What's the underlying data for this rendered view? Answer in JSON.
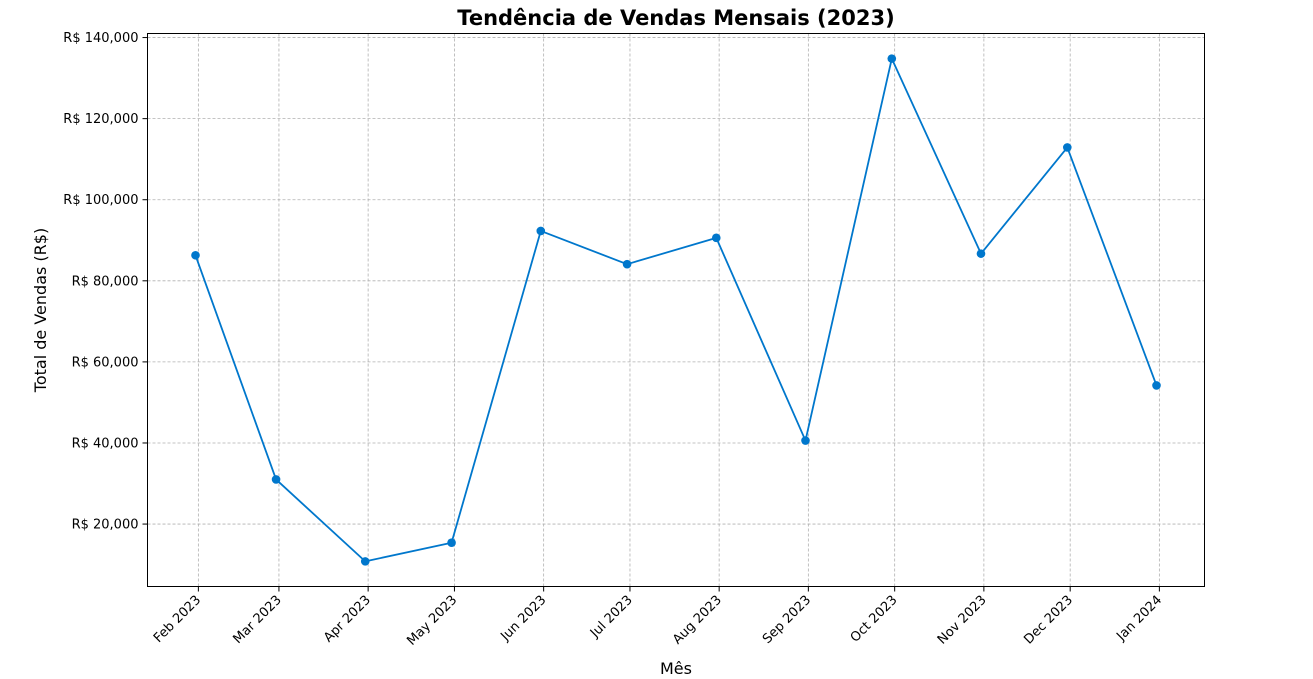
{
  "chart_data": {
    "type": "line",
    "title": "Tendência de Vendas Mensais (2023)",
    "xlabel": "Mês",
    "ylabel": "Total de Vendas (R$)",
    "categories": [
      "Feb 2023",
      "Mar 2023",
      "Apr 2023",
      "May 2023",
      "Jun 2023",
      "Jul 2023",
      "Aug 2023",
      "Sep 2023",
      "Oct 2023",
      "Nov 2023",
      "Dec 2023",
      "Jan 2024"
    ],
    "x_dates": [
      "2023-01-31",
      "2023-02-28",
      "2023-03-31",
      "2023-04-30",
      "2023-05-31",
      "2023-06-30",
      "2023-07-31",
      "2023-08-31",
      "2023-09-30",
      "2023-10-31",
      "2023-11-30",
      "2023-12-31"
    ],
    "series": [
      {
        "values": [
          86300,
          31000,
          10800,
          15400,
          92300,
          84100,
          90600,
          40600,
          134800,
          86700,
          112900,
          54200
        ]
      }
    ],
    "y_ticks": [
      20000,
      40000,
      60000,
      80000,
      100000,
      120000,
      140000
    ],
    "y_tick_labels": [
      "R$ 20,000",
      "R$ 40,000",
      "R$ 60,000",
      "R$ 80,000",
      "R$ 100,000",
      "R$ 120,000",
      "R$ 140,000"
    ],
    "ylim": [
      4600,
      141000
    ],
    "grid": true,
    "line_color": "#0077cc",
    "marker": "circle"
  }
}
